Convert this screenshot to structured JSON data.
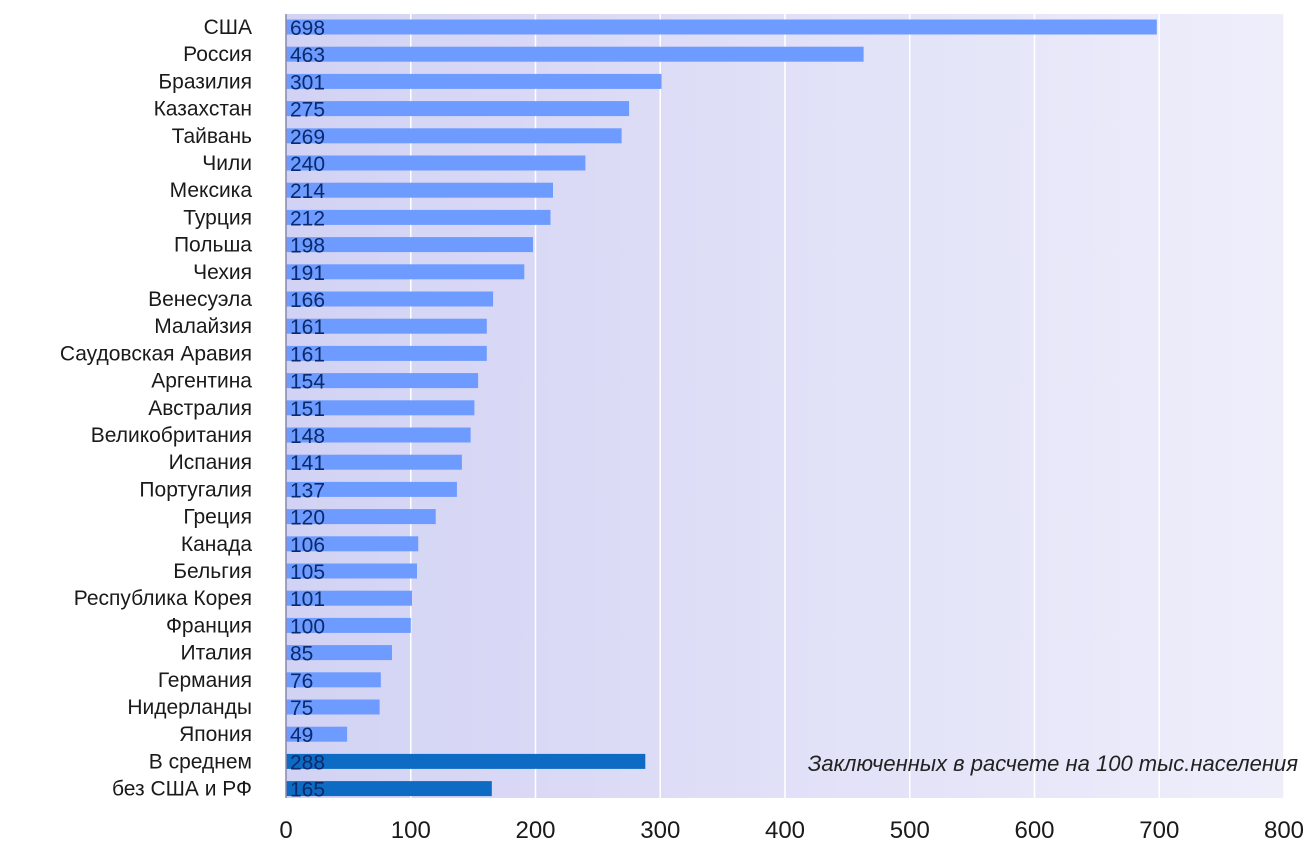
{
  "chart_data": {
    "type": "bar",
    "orientation": "horizontal",
    "categories": [
      "США",
      "Россия",
      "Бразилия",
      "Казахстан",
      "Тайвань",
      "Чили",
      "Мексика",
      "Турция",
      "Польша",
      "Чехия",
      "Венесуэла",
      "Малайзия",
      "Саудовская Аравия",
      "Аргентина",
      "Австралия",
      "Великобритания",
      "Испания",
      "Португалия",
      "Греция",
      "Канада",
      "Бельгия",
      "Республика Корея",
      "Франция",
      "Италия",
      "Германия",
      "Нидерланды",
      "Япония",
      "В среднем",
      "без США и РФ"
    ],
    "values": [
      698,
      463,
      301,
      275,
      269,
      240,
      214,
      212,
      198,
      191,
      166,
      161,
      161,
      154,
      151,
      148,
      141,
      137,
      120,
      106,
      105,
      101,
      100,
      85,
      76,
      75,
      49,
      288,
      165
    ],
    "value_labels": [
      "698",
      "463",
      "301",
      "275",
      "269",
      "240",
      "214",
      "212",
      "198",
      "191",
      "166",
      "161",
      "161",
      "154",
      "151",
      "148",
      "141",
      "137",
      "120",
      "106",
      "105",
      "101",
      "100",
      "85",
      "76",
      "75",
      "49",
      "288",
      "165"
    ],
    "highlighted_categories": [
      "В среднем",
      "без США и РФ"
    ],
    "xlim": [
      0,
      800
    ],
    "x_ticks": [
      0,
      100,
      200,
      300,
      400,
      500,
      600,
      700,
      800
    ],
    "x_tick_labels": [
      "0",
      "100",
      "200",
      "300",
      "400",
      "500",
      "600",
      "700",
      "800"
    ],
    "annotation": "Заключенных в расчете на 100 тыс.населения",
    "title": "",
    "xlabel": "",
    "ylabel": "",
    "grid": "vertical",
    "colors": {
      "bar": "#6e9bff",
      "bar_highlight": "#0e6bc4",
      "plot_background": "#e0e0f8",
      "gridline": "#ffffff",
      "axis": "#8888aa"
    }
  }
}
